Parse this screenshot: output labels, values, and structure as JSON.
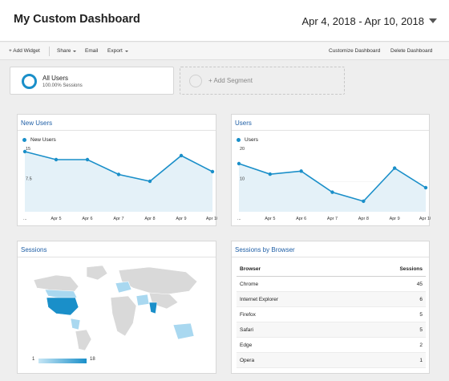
{
  "header": {
    "title": "My Custom Dashboard",
    "date_range": "Apr 4, 2018 - Apr 10, 2018"
  },
  "toolbar": {
    "add_widget": "+ Add Widget",
    "share": "Share",
    "email": "Email",
    "export": "Export",
    "customize": "Customize Dashboard",
    "delete": "Delete Dashboard"
  },
  "segments": {
    "all_users": {
      "name": "All Users",
      "sub": "100.00% Sessions"
    },
    "add_segment": "+ Add Segment"
  },
  "colors": {
    "accent": "#1a8fc9",
    "link_title": "#1f5fa6",
    "area_fill": "#e4f1f8"
  },
  "widgets": {
    "new_users": {
      "title": "New Users",
      "chart_data": {
        "type": "line",
        "title": "New Users",
        "series": [
          {
            "name": "New Users",
            "values": [
              15,
              13,
              13,
              9.3,
              7.6,
              14,
              10
            ]
          }
        ],
        "x": [
          "...",
          "Apr 5",
          "Apr 6",
          "Apr 7",
          "Apr 8",
          "Apr 9",
          "Apr 10"
        ],
        "yticks": [
          "15",
          "7.5"
        ],
        "ylim": [
          0,
          15
        ]
      }
    },
    "users": {
      "title": "Users",
      "chart_data": {
        "type": "line",
        "title": "Users",
        "series": [
          {
            "name": "Users",
            "values": [
              16,
              12.5,
              13.5,
              6.5,
              3.5,
              14.5,
              8
            ]
          }
        ],
        "x": [
          "...",
          "Apr 5",
          "Apr 6",
          "Apr 7",
          "Apr 8",
          "Apr 9",
          "Apr 10"
        ],
        "yticks": [
          "20",
          "10"
        ],
        "ylim": [
          0,
          20
        ]
      }
    },
    "sessions": {
      "title": "Sessions",
      "scale_min": "1",
      "scale_max": "18"
    },
    "browsers": {
      "title": "Sessions by Browser",
      "chart_data": {
        "type": "table",
        "columns": [
          "Browser",
          "Sessions"
        ],
        "rows": [
          {
            "browser": "Chrome",
            "sessions": "45"
          },
          {
            "browser": "Internet Explorer",
            "sessions": "6"
          },
          {
            "browser": "Firefox",
            "sessions": "5"
          },
          {
            "browser": "Safari",
            "sessions": "5"
          },
          {
            "browser": "Edge",
            "sessions": "2"
          },
          {
            "browser": "Opera",
            "sessions": "1"
          }
        ]
      }
    }
  }
}
